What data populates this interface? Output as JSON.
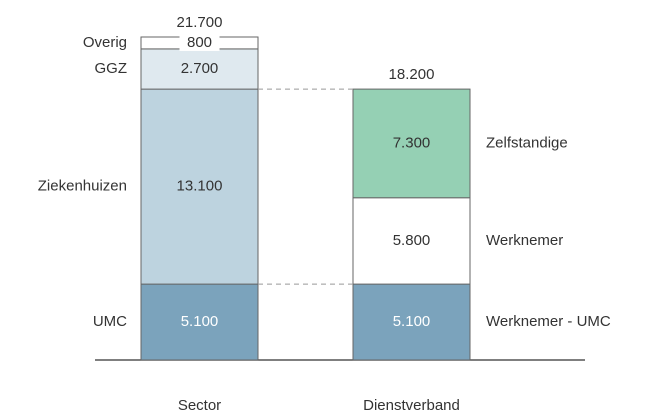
{
  "chart_data": {
    "type": "stacked-bar",
    "bars": [
      {
        "category": "Sector",
        "total": 21700,
        "total_label": "21.700",
        "label_side": "left",
        "segments": [
          {
            "name": "UMC",
            "value": 5100,
            "value_label": "5.100",
            "color": "#7ba3bc",
            "label_color": "#ffffff"
          },
          {
            "name": "Ziekenhuizen",
            "value": 13100,
            "value_label": "13.100",
            "color": "#bdd3df",
            "label_color": "#333333"
          },
          {
            "name": "GGZ",
            "value": 2700,
            "value_label": "2.700",
            "color": "#dfe9ef",
            "label_color": "#333333"
          },
          {
            "name": "Overig",
            "value": 800,
            "value_label": "800",
            "color": "#ffffff",
            "label_color": "#333333"
          }
        ]
      },
      {
        "category": "Dienstverband",
        "total": 18200,
        "total_label": "18.200",
        "label_side": "right",
        "segments": [
          {
            "name": "Werknemer - UMC",
            "value": 5100,
            "value_label": "5.100",
            "color": "#7ba3bc",
            "label_color": "#ffffff"
          },
          {
            "name": "Werknemer",
            "value": 5800,
            "value_label": "5.800",
            "color": "#ffffff",
            "label_color": "#333333"
          },
          {
            "name": "Zelfstandige",
            "value": 7300,
            "value_label": "7.300",
            "color": "#95d0b4",
            "label_color": "#333333"
          }
        ]
      }
    ]
  }
}
